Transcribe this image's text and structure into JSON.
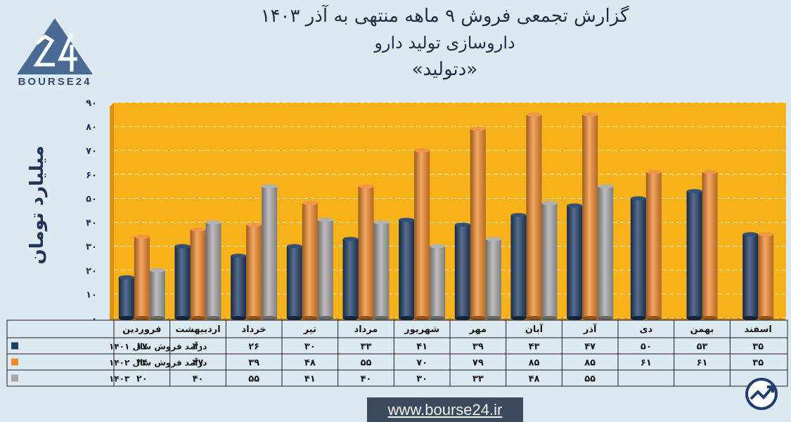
{
  "header": {
    "title_line1": "گزارش تجمعی فروش ۹ ماهه منتهی به آذر ۱۴۰۳",
    "title_line2": "داروسازی تولید دارو",
    "title_line3": "«دتولید»"
  },
  "brand": {
    "logo_text": "BOURSE24",
    "website": "www.bourse24.ir",
    "logo_icon": "triangle-24-logo-icon",
    "corner_icon": "chart-arrow-badge-icon"
  },
  "chart_data": {
    "type": "bar",
    "ylabel": "میلیارد تومان",
    "ylim": [
      0,
      90
    ],
    "ytick_labels": [
      "۰",
      "۱۰",
      "۲۰",
      "۳۰",
      "۴۰",
      "۵۰",
      "۶۰",
      "۷۰",
      "۸۰",
      "۹۰"
    ],
    "grid": true,
    "categories": [
      "فروردین",
      "اردیبهشت",
      "خرداد",
      "تیر",
      "مرداد",
      "شهریور",
      "مهر",
      "آبان",
      "آذر",
      "دی",
      "بهمن",
      "اسفند"
    ],
    "series": [
      {
        "name": "درآمد فروش سال ۱۴۰۱",
        "color": "#1f3d66",
        "values": [
          17,
          30,
          26,
          30,
          33,
          41,
          39,
          43,
          47,
          50,
          53,
          35
        ],
        "labels": [
          "۱۷",
          "۳۰",
          "۲۶",
          "۳۰",
          "۳۳",
          "۴۱",
          "۳۹",
          "۴۳",
          "۴۷",
          "۵۰",
          "۵۳",
          "۳۵"
        ]
      },
      {
        "name": "درآمد فروش سال ۱۴۰۲",
        "color": "#f08a2e",
        "values": [
          34,
          37,
          39,
          48,
          55,
          70,
          79,
          85,
          85,
          61,
          61,
          35
        ],
        "labels": [
          "۳۴",
          "۳۷",
          "۳۹",
          "۴۸",
          "۵۵",
          "۷۰",
          "۷۹",
          "۸۵",
          "۸۵",
          "۶۱",
          "۶۱",
          "۳۵"
        ]
      },
      {
        "name": "۱۴۰۳",
        "color": "#a8a8a8",
        "values": [
          20,
          40,
          55,
          41,
          40,
          30,
          33,
          48,
          55,
          null,
          null,
          null
        ],
        "labels": [
          "۲۰",
          "۴۰",
          "۵۵",
          "۴۱",
          "۴۰",
          "۳۰",
          "۳۳",
          "۴۸",
          "۵۵",
          "",
          "",
          ""
        ]
      }
    ],
    "plot_background": "#f7b21a"
  }
}
